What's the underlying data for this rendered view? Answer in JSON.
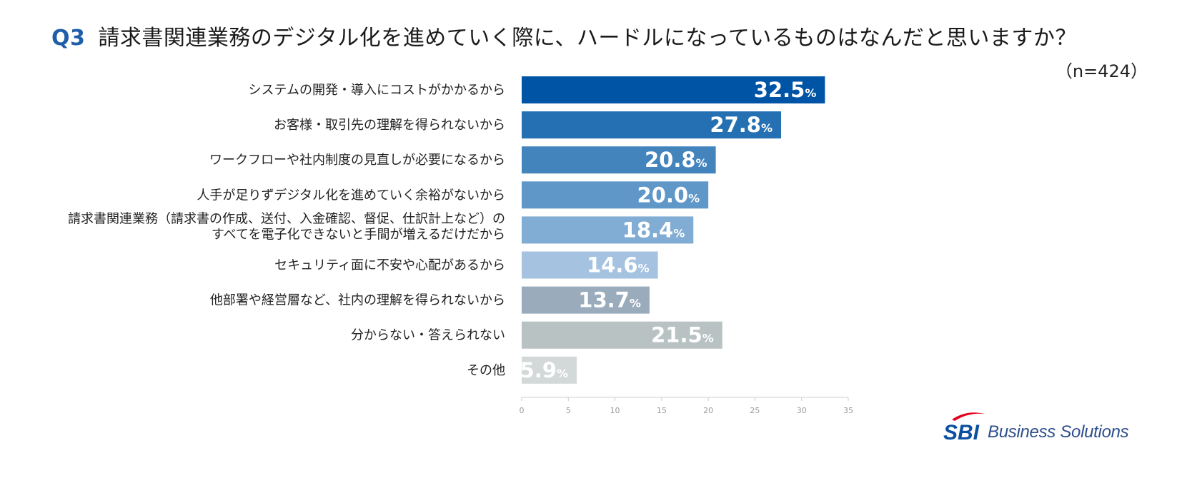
{
  "header": {
    "question_no": "Q3",
    "question": "請求書関連業務のデジタル化を進めていく際に、ハードルになっているものはなんだと思いますか？",
    "sample_size": "（n=424）"
  },
  "logo": {
    "mark_text": "SBI",
    "text": "Business Solutions"
  },
  "chart_data": {
    "type": "bar",
    "orientation": "horizontal",
    "title": "請求書関連業務のデジタル化を進めていく際に、ハードルになっているものはなんだと思いますか？",
    "unit": "%",
    "xlim": [
      0,
      35
    ],
    "ticks": [
      "0",
      "5",
      "10",
      "15",
      "20",
      "25",
      "30",
      "35"
    ],
    "tick_values": [
      0,
      5,
      10,
      15,
      20,
      25,
      30,
      35
    ],
    "categories": [
      [
        "システムの開発・導入にコストがかかるから"
      ],
      [
        "お客様・取引先の理解を得られないから"
      ],
      [
        "ワークフローや社内制度の見直しが必要になるから"
      ],
      [
        "人手が足りずデジタル化を進めていく余裕がないから"
      ],
      [
        "請求書関連業務（請求書の作成、送付、入金確認、督促、仕訳計上など）の",
        "すべてを電子化できないと手間が増えるだけだから"
      ],
      [
        "セキュリティ面に不安や心配があるから"
      ],
      [
        "他部署や経営層など、社内の理解を得られないから"
      ],
      [
        "分からない・答えられない"
      ],
      [
        "その他"
      ]
    ],
    "values": [
      32.5,
      27.8,
      20.8,
      20.0,
      18.4,
      14.6,
      13.7,
      21.5,
      5.9
    ],
    "value_labels": [
      "32.5",
      "27.8",
      "20.8",
      "20.0",
      "18.4",
      "14.6",
      "13.7",
      "21.5",
      "5.9"
    ],
    "colors": [
      "#0054a6",
      "#2470b2",
      "#4384bd",
      "#5e97c8",
      "#81acd3",
      "#a5c3e0",
      "#9aabbc",
      "#b9c2c3",
      "#d3d8d9"
    ],
    "axis_color": "#cccccc"
  }
}
